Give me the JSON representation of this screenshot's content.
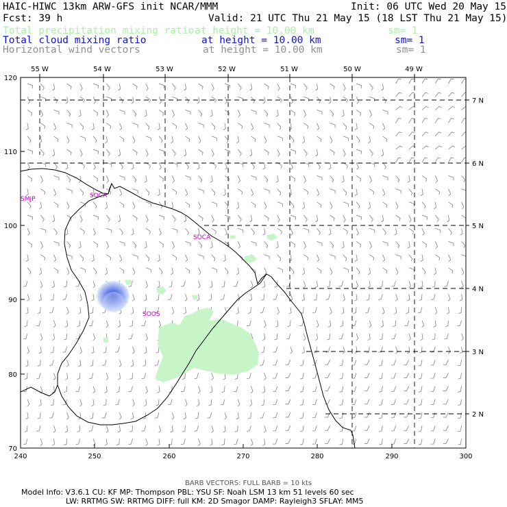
{
  "header": {
    "title_left": "HAIC-HIWC 13km ARW-GFS init   NCAR/MMM",
    "init": "Init: 06 UTC Wed 20 May 15",
    "fcst": "Fcst:   39 h",
    "valid": "Valid: 21 UTC Thu 21 May 15 (18 LST Thu 21 May 15)"
  },
  "legend": [
    {
      "name": "Total precipitation mixing ratio",
      "height": "at height = 10.00 km",
      "sm": "sm= 1",
      "color": "#a8f0a8"
    },
    {
      "name": "Total cloud mixing ratio",
      "height": "at height = 10.00 km",
      "sm": "sm= 1",
      "color": "#1010e0"
    },
    {
      "name": "Horizontal wind vectors",
      "height": "at height = 10.00 km",
      "sm": "sm= 1",
      "color": "#909090"
    }
  ],
  "map": {
    "top_lon_labels": [
      "55 W",
      "54 W",
      "53 W",
      "52 W",
      "51 W",
      "50 W",
      "49 W"
    ],
    "right_lat_labels": [
      "7 N",
      "6 N",
      "5 N",
      "4 N",
      "3 N",
      "2 N"
    ],
    "left_y_ticks": [
      "120",
      "110",
      "100",
      "90",
      "80",
      "70"
    ],
    "bottom_x_ticks": [
      "240",
      "250",
      "260",
      "270",
      "280",
      "290",
      "300"
    ],
    "stations": [
      "SMJP",
      "SOCA",
      "SOCA",
      "SOOS"
    ],
    "colors": {
      "coast": "#000000",
      "grid": "#000000",
      "barb": "#707070",
      "precip": "#c8f5c8",
      "cloud": "#4060e0",
      "station": "#c000c0"
    }
  },
  "footer": {
    "barb_note": "BARB VECTORS:  FULL BARB = 10 kts",
    "line1": "Model Info: V3.6.1     CU: KF       MP: Thompson      PBL: YSU        SF: Noah LSM      13 km    51 levels   60 sec",
    "line2": "LW: RRTMG     SW: RRTMG    DIFF: full      KM: 2D Smagor DAMP: Rayleigh3   SFLAY: MM5"
  }
}
